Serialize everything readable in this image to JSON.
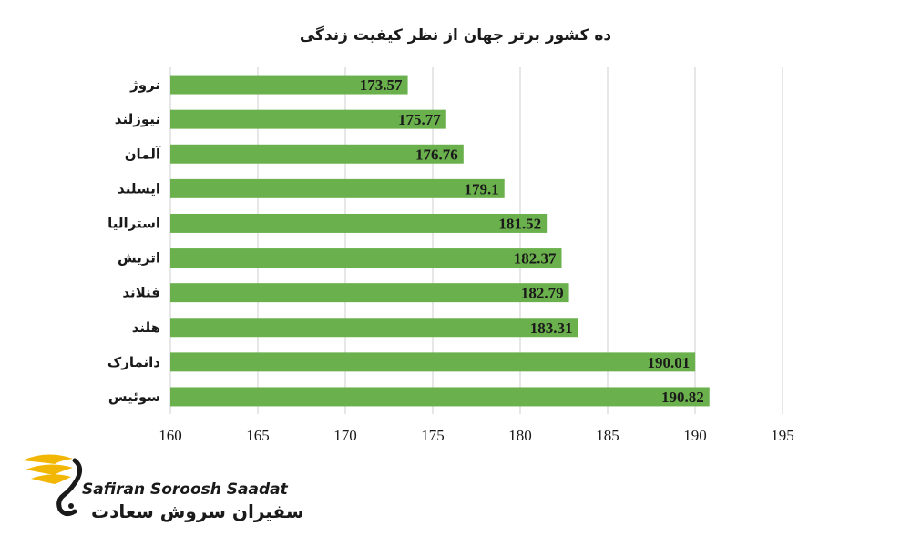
{
  "chart_data": {
    "type": "bar",
    "orientation": "horizontal",
    "title": "ده کشور برتر جهان از نظر کیفیت زندگی",
    "categories": [
      "نروژ",
      "نیوزلند",
      "آلمان",
      "ایسلند",
      "استرالیا",
      "اتریش",
      "فنلاند",
      "هلند",
      "دانمارک",
      "سوئیس"
    ],
    "values": [
      173.57,
      175.77,
      176.76,
      179.1,
      181.52,
      182.37,
      182.79,
      183.31,
      190.01,
      190.82
    ],
    "value_labels": [
      "173.57",
      "175.77",
      "176.76",
      "179.1",
      "181.52",
      "182.37",
      "182.79",
      "183.31",
      "190.01",
      "190.82"
    ],
    "xlim": [
      160,
      195
    ],
    "xticks": [
      160,
      165,
      170,
      175,
      180,
      185,
      190,
      195
    ],
    "xlabel": "",
    "ylabel": "",
    "grid": true,
    "bar_color": "#6ab04c",
    "grid_color": "#cfcfcf"
  },
  "logo": {
    "text_en": "Safiran Soroosh Saadat",
    "text_fa": "سفیران سروش سعادت",
    "accent_color": "#f2b705"
  }
}
